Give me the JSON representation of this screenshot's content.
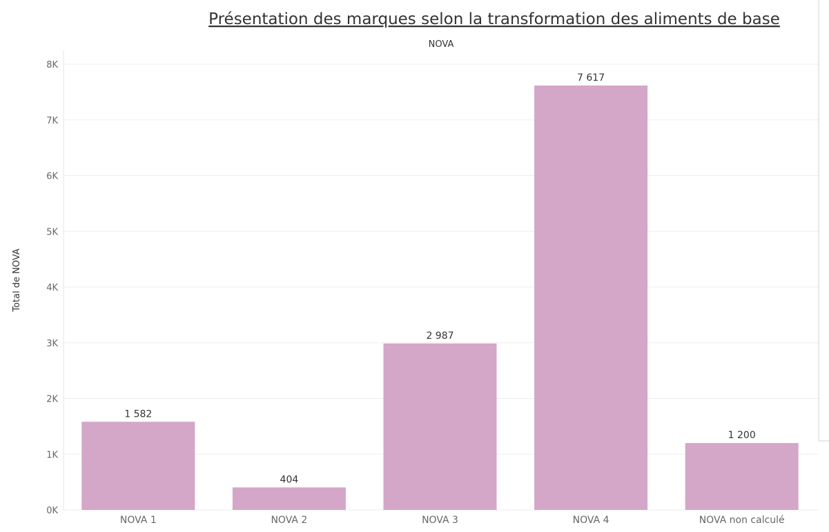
{
  "colors": {
    "bar": "#D4A6C8",
    "grid": "#EDEDED",
    "axis_text": "#666666",
    "label_text": "#333333",
    "title_text": "#333333"
  },
  "chart_data": {
    "type": "bar",
    "title": "Présentation des marques selon la transformation des aliments de base",
    "column_header": "NOVA",
    "ylabel": "Total de NOVA",
    "xlabel": "",
    "categories": [
      "NOVA 1",
      "NOVA 2",
      "NOVA 3",
      "NOVA 4",
      "NOVA non calculé"
    ],
    "values": [
      1582,
      404,
      2987,
      7617,
      1200
    ],
    "value_labels": [
      "1 582",
      "404",
      "2 987",
      "7 617",
      "1 200"
    ],
    "ylim": [
      0,
      8000
    ],
    "yticks": [
      0,
      1000,
      2000,
      3000,
      4000,
      5000,
      6000,
      7000,
      8000
    ],
    "ytick_labels": [
      "0K",
      "1K",
      "2K",
      "3K",
      "4K",
      "5K",
      "6K",
      "7K",
      "8K"
    ],
    "grid": true,
    "legend": "none"
  }
}
